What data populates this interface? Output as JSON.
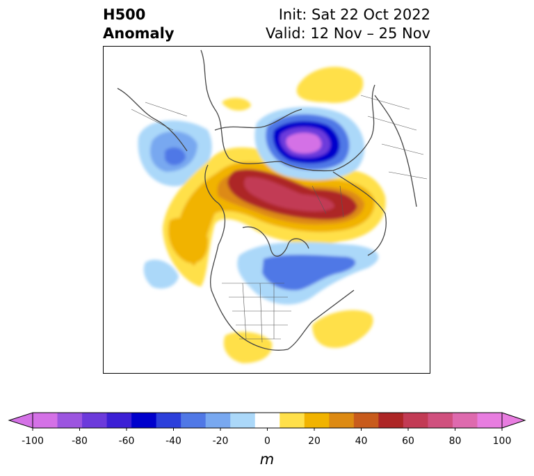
{
  "title": {
    "left_line1": "H500",
    "left_line2": "Anomaly",
    "right_line1": "Init: Sat 22 Oct 2022",
    "right_line2": "Valid: 12 Nov – 25 Nov"
  },
  "colorbar": {
    "unit": "m",
    "ticks": [
      "-100",
      "-80",
      "-60",
      "-40",
      "-20",
      "0",
      "20",
      "40",
      "60",
      "80",
      "100"
    ],
    "min": -100,
    "max": 100,
    "step": 10,
    "colors": [
      "#d471e6",
      "#9c55e0",
      "#6c3adb",
      "#3c1fd5",
      "#0000cc",
      "#2c3fdb",
      "#5078e6",
      "#78a8f0",
      "#abd8f9",
      "#ffffff",
      "#ffe04a",
      "#f1b300",
      "#dd8a12",
      "#c85b1c",
      "#ad2626",
      "#c23b55",
      "#d0507e",
      "#de6aae",
      "#e87de0"
    ],
    "extend_min_color": "#d471e6",
    "extend_max_color": "#e87de0"
  },
  "map": {
    "projection": "north-polar-stereographic",
    "features": [
      "coastlines",
      "country borders",
      "us state borders"
    ]
  }
}
